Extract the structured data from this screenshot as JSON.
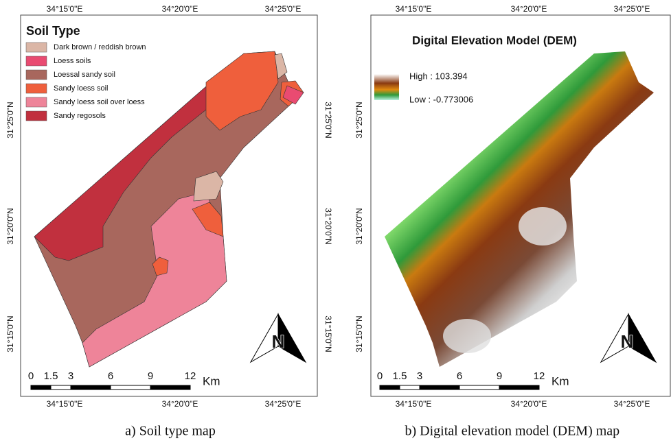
{
  "panels": [
    {
      "title": "Soil Type",
      "legend": [
        {
          "label": "Dark brown / reddish brown",
          "color": "#dbb6a6"
        },
        {
          "label": "Loess soils",
          "color": "#e94b71"
        },
        {
          "label": "Loessal sandy soil",
          "color": "#a8675d"
        },
        {
          "label": "Sandy loess soil",
          "color": "#ef5f3c"
        },
        {
          "label": "Sandy loess soil over loess",
          "color": "#ee8499"
        },
        {
          "label": "Sandy regosols",
          "color": "#c1303e"
        }
      ],
      "top_labels": [
        "34°15'0\"E",
        "34°20'0\"E",
        "34°25'0\"E"
      ],
      "bottom_labels": [
        "34°15'0\"E",
        "34°20'0\"E",
        "34°25'0\"E"
      ],
      "left_labels": [
        "31°25'0\"N",
        "31°20'0\"N",
        "31°15'0\"N"
      ],
      "right_labels": [
        "31°25'0\"N",
        "31°20'0\"N",
        "31°15'0\"N"
      ],
      "scale_labels": [
        0,
        1.5,
        3,
        6,
        9,
        12
      ],
      "scale_unit": "Km",
      "north": "N",
      "caption": "a) Soil type map"
    },
    {
      "title": "Digital Elevation Model (DEM)",
      "legend": [
        {
          "label": "High : 103.394"
        },
        {
          "label": "Low : -0.773006"
        }
      ],
      "top_labels": [
        "34°15'0\"E",
        "34°20'0\"E",
        "34°25'0\"E"
      ],
      "bottom_labels": [
        "34°15'0\"E",
        "34°20'0\"E",
        "34°25'0\"E"
      ],
      "left_labels": [
        "31°25'0\"N",
        "31°20'0\"N",
        "31°15'0\"N"
      ],
      "scale_labels": [
        0,
        1.5,
        3,
        6,
        9,
        12
      ],
      "scale_unit": "Km",
      "north": "N",
      "caption": "b) Digital elevation model (DEM) map"
    }
  ]
}
